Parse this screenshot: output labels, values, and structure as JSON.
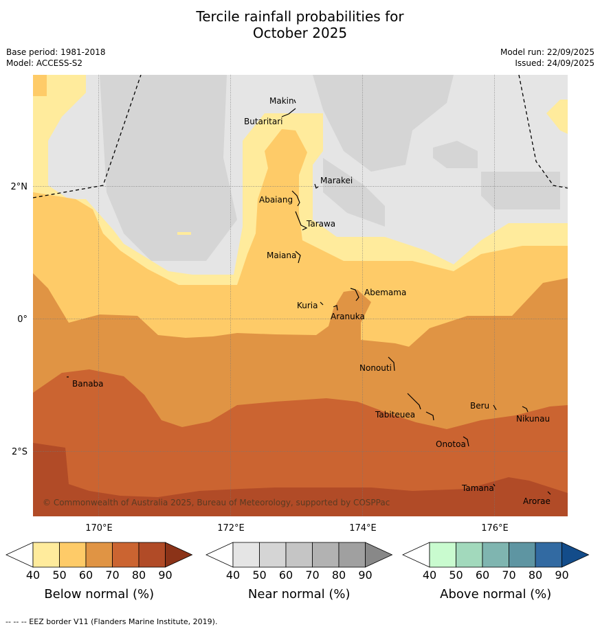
{
  "title_line1": "Tercile rainfall probabilities for",
  "title_line2": "October 2025",
  "base_period": "Base period: 1981-2018",
  "model": "Model: ACCESS-S2",
  "model_run": "Model run: 22/09/2025",
  "issued": "Issued: 24/09/2025",
  "copyright": "© Commonwealth of Australia 2025, Bureau of Meteorology, supported by COSPPac",
  "footnote": "--  --  -- EEZ border V11 (Flanders Marine Institute, 2019).",
  "map": {
    "lon_range": [
      169.0,
      177.1
    ],
    "lat_range": [
      -3.0,
      3.7
    ],
    "lon_ticks": [
      {
        "value": 170,
        "label": "170°E"
      },
      {
        "value": 172,
        "label": "172°E"
      },
      {
        "value": 174,
        "label": "174°E"
      },
      {
        "value": 176,
        "label": "176°E"
      }
    ],
    "lat_ticks": [
      {
        "value": 2,
        "label": "2°N"
      },
      {
        "value": 0,
        "label": "0°"
      },
      {
        "value": -2,
        "label": "2°S"
      }
    ],
    "places": [
      {
        "name": "Makin",
        "lon": 173.0,
        "lat": 3.33
      },
      {
        "name": "Butaritari",
        "lon": 172.8,
        "lat": 3.07
      },
      {
        "name": "Marakei",
        "lon": 173.3,
        "lat": 2.0
      },
      {
        "name": "Abaiang",
        "lon": 172.9,
        "lat": 1.83
      },
      {
        "name": "Tarawa",
        "lon": 173.0,
        "lat": 1.42
      },
      {
        "name": "Maiana",
        "lon": 173.0,
        "lat": 0.92
      },
      {
        "name": "Abemama",
        "lon": 173.9,
        "lat": 0.4
      },
      {
        "name": "Kuria",
        "lon": 173.4,
        "lat": 0.23
      },
      {
        "name": "Aranuka",
        "lon": 173.6,
        "lat": 0.16
      },
      {
        "name": "Nonouti",
        "lon": 174.4,
        "lat": -0.67
      },
      {
        "name": "Banaba",
        "lon": 169.55,
        "lat": -0.87
      },
      {
        "name": "Beru",
        "lon": 176.0,
        "lat": -1.33
      },
      {
        "name": "Tabiteuea",
        "lon": 174.8,
        "lat": -1.33
      },
      {
        "name": "Nikunau",
        "lon": 176.45,
        "lat": -1.37
      },
      {
        "name": "Onotoa",
        "lon": 175.55,
        "lat": -1.83
      },
      {
        "name": "Tamana",
        "lon": 175.98,
        "lat": -2.5
      },
      {
        "name": "Arorae",
        "lon": 176.82,
        "lat": -2.64
      }
    ]
  },
  "legends": [
    {
      "label": "Below normal (%)",
      "ticks": [
        "40",
        "50",
        "60",
        "70",
        "80",
        "90"
      ],
      "colors": [
        "#ffffff",
        "#ffeb9c",
        "#fecb68",
        "#e09444",
        "#cb6431",
        "#b14b27",
        "#8b3318"
      ]
    },
    {
      "label": "Near normal (%)",
      "ticks": [
        "40",
        "50",
        "60",
        "70",
        "80",
        "90"
      ],
      "colors": [
        "#ffffff",
        "#e5e5e5",
        "#d5d5d5",
        "#c5c5c5",
        "#b2b2b2",
        "#a0a0a0",
        "#888888"
      ]
    },
    {
      "label": "Above normal (%)",
      "ticks": [
        "40",
        "50",
        "60",
        "70",
        "80",
        "90"
      ],
      "colors": [
        "#ffffff",
        "#c9fbcf",
        "#a2d9bc",
        "#7fb5b0",
        "#5e95a2",
        "#326aa2",
        "#134c8a"
      ]
    }
  ]
}
